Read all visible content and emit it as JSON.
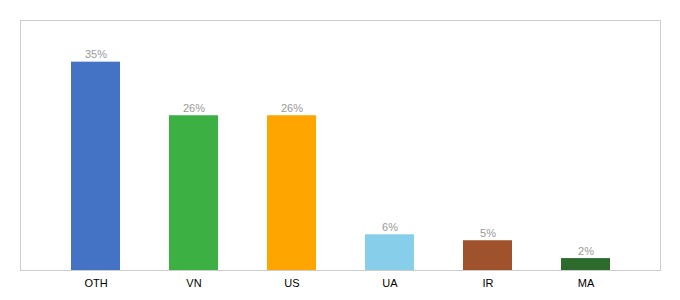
{
  "chart_data": {
    "type": "bar",
    "categories": [
      "OTH",
      "VN",
      "US",
      "UA",
      "IR",
      "MA"
    ],
    "values": [
      35,
      26,
      26,
      6,
      5,
      2
    ],
    "value_labels": [
      "35%",
      "26%",
      "26%",
      "6%",
      "5%",
      "2%"
    ],
    "colors": [
      "#4472C4",
      "#3CB043",
      "#FFA500",
      "#87CEEB",
      "#A0522D",
      "#2D6B2D"
    ],
    "ylim": [
      0,
      42
    ],
    "data_labels": true,
    "tick_labels": "x",
    "grid": false
  }
}
